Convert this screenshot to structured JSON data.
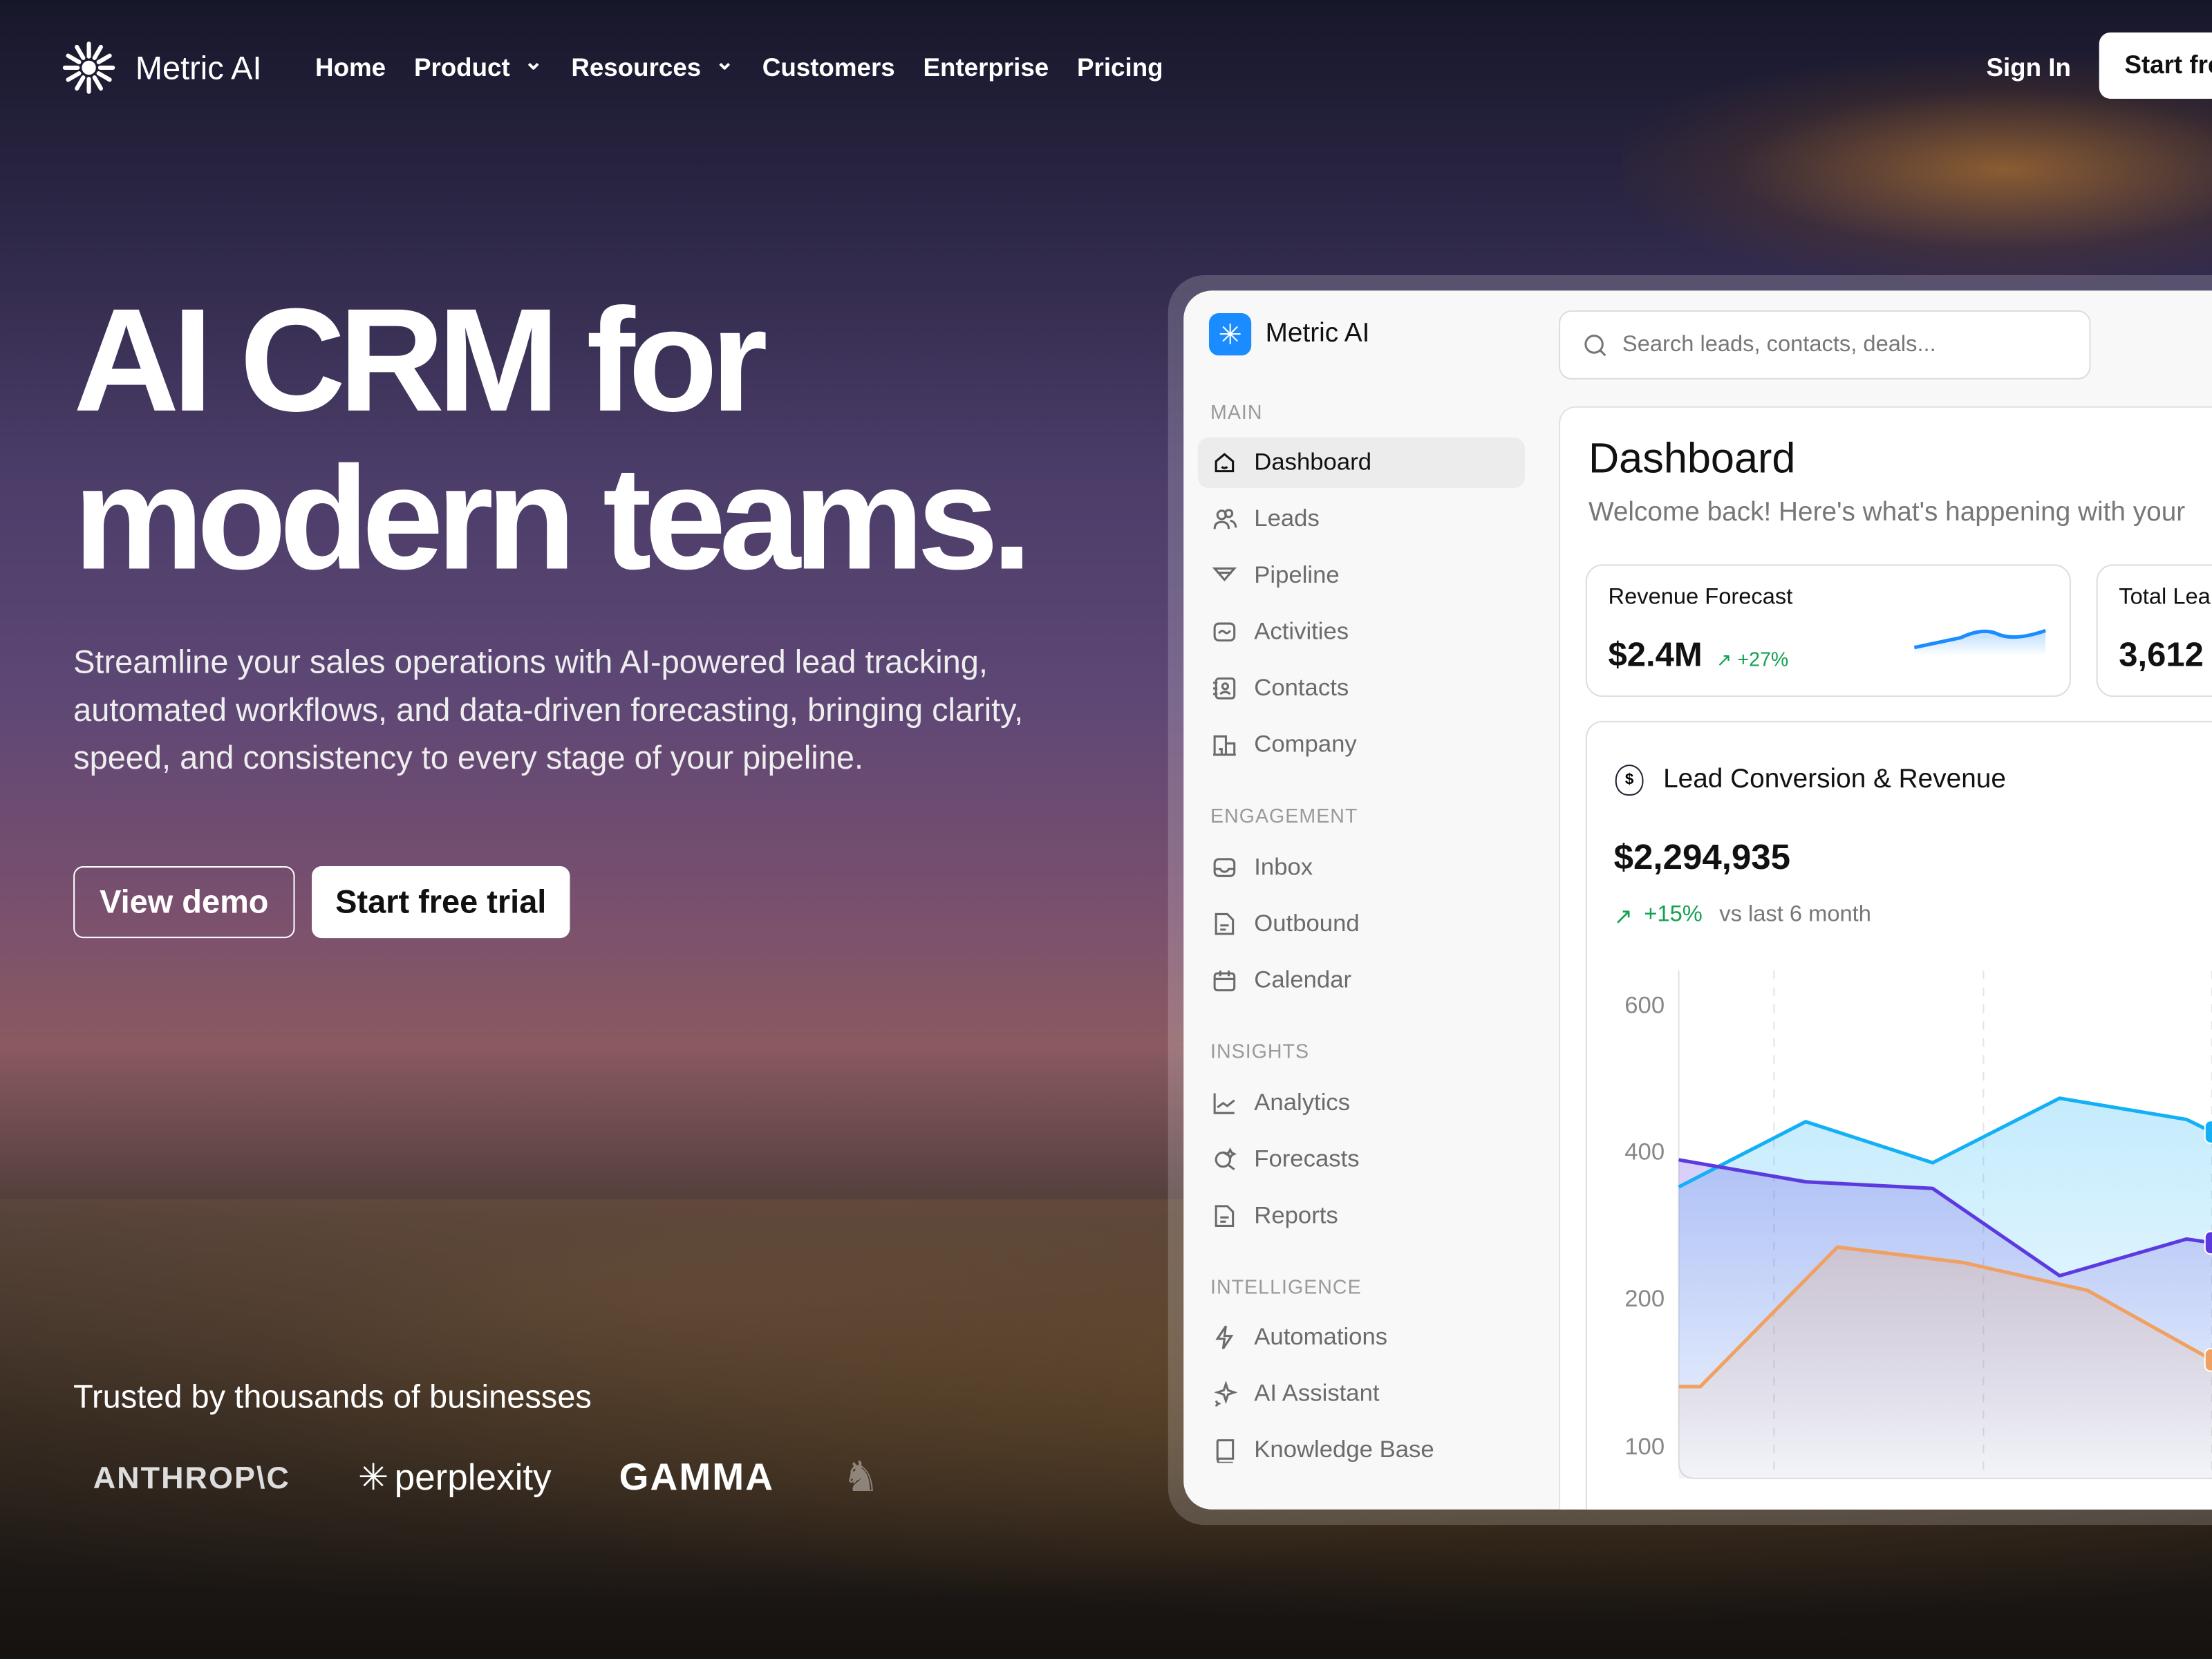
{
  "nav": {
    "brand": "Metric AI",
    "links": [
      "Home",
      "Product",
      "Resources",
      "Customers",
      "Enterprise",
      "Pricing"
    ],
    "dropdowns": [
      false,
      true,
      true,
      false,
      false,
      false
    ],
    "sign_in": "Sign In",
    "start": "Start free trial"
  },
  "hero": {
    "title_line1": "AI CRM for",
    "title_line2": "modern teams.",
    "subtitle": "Streamline your sales operations with AI-powered lead tracking, automated workflows, and data-driven forecasting, bringing clarity, speed, and consistency to every stage of your pipeline.",
    "view_demo": "View demo",
    "start_trial": "Start free trial"
  },
  "trust": {
    "label": "Trusted by thousands of businesses",
    "logos": [
      "ANTHROP\\C",
      "perplexity",
      "GAMMA"
    ]
  },
  "app": {
    "brand": "Metric AI",
    "search_placeholder": "Search leads, contacts, deals...",
    "sections": [
      {
        "label": "MAIN",
        "items": [
          {
            "label": "Dashboard",
            "icon": "home-icon",
            "active": true
          },
          {
            "label": "Leads",
            "icon": "users-icon"
          },
          {
            "label": "Pipeline",
            "icon": "funnel-icon"
          },
          {
            "label": "Activities",
            "icon": "activity-icon"
          },
          {
            "label": "Contacts",
            "icon": "contacts-icon"
          },
          {
            "label": "Company",
            "icon": "building-icon"
          }
        ]
      },
      {
        "label": "ENGAGEMENT",
        "items": [
          {
            "label": "Inbox",
            "icon": "inbox-icon"
          },
          {
            "label": "Outbound",
            "icon": "document-icon"
          },
          {
            "label": "Calendar",
            "icon": "calendar-icon"
          }
        ]
      },
      {
        "label": "INSIGHTS",
        "items": [
          {
            "label": "Analytics",
            "icon": "chart-line-icon"
          },
          {
            "label": "Forecasts",
            "icon": "forecast-icon"
          },
          {
            "label": "Reports",
            "icon": "report-icon"
          }
        ]
      },
      {
        "label": "INTELLIGENCE",
        "items": [
          {
            "label": "Automations",
            "icon": "bolt-icon"
          },
          {
            "label": "AI Assistant",
            "icon": "sparkle-icon"
          },
          {
            "label": "Knowledge Base",
            "icon": "book-icon"
          }
        ]
      }
    ],
    "dashboard": {
      "title": "Dashboard",
      "welcome": "Welcome back! Here's what's happening with your",
      "kpis": [
        {
          "label": "Revenue Forecast",
          "value": "$2.4M",
          "change": "+27%"
        },
        {
          "label": "Total Lea",
          "value": "3,612"
        }
      ],
      "chart_card": {
        "title": "Lead Conversion & Revenue",
        "value": "$2,294,935",
        "change": "+15%",
        "compare": "vs last 6 month"
      }
    }
  },
  "colors": {
    "accent": "#1a8cff",
    "green": "#12a150",
    "cyan": "#14b0f5",
    "purple": "#5b3be0",
    "orange": "#f0a060"
  },
  "chart_data": {
    "type": "area",
    "yticks": [
      "600",
      "400",
      "200",
      "100"
    ],
    "grid": "vertical dashed",
    "series": [
      {
        "color": "#14b0f5",
        "points": [
          [
            0,
            355
          ],
          [
            1,
            444
          ],
          [
            2,
            388
          ],
          [
            3,
            476
          ],
          [
            4,
            447
          ],
          [
            4.2,
            430
          ]
        ]
      },
      {
        "color": "#5b3be0",
        "points": [
          [
            0,
            392
          ],
          [
            1,
            362
          ],
          [
            2,
            353
          ],
          [
            3,
            234
          ],
          [
            4,
            284
          ],
          [
            4.2,
            279
          ]
        ]
      },
      {
        "color": "#f0a060",
        "points": [
          [
            0,
            142
          ],
          [
            0.17,
            142
          ],
          [
            1.25,
            273
          ],
          [
            2.24,
            252
          ],
          [
            3.22,
            214
          ],
          [
            4.2,
            160
          ]
        ]
      }
    ]
  }
}
